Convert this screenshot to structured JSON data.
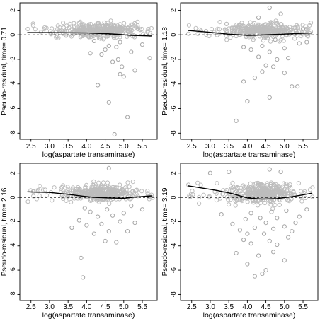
{
  "chart_data": [
    {
      "type": "scatter",
      "xlabel": "log(aspartate transaminase)",
      "ylabel": "Pseudo-residual, time= 0.71",
      "xlim": [
        2.2,
        5.9
      ],
      "ylim": [
        -8.5,
        2.6
      ],
      "xticks": [
        "2.5",
        "3.0",
        "3.5",
        "4.0",
        "4.5",
        "5.0",
        "5.5"
      ],
      "yticks": [
        "2",
        "0",
        "-2",
        "-4",
        "-6",
        "-8"
      ],
      "reference_line": 0,
      "outliers": [
        [
          4.7,
          -2.2
        ],
        [
          4.85,
          -2.0
        ],
        [
          4.95,
          -2.6
        ],
        [
          4.9,
          -3.2
        ],
        [
          4.3,
          -4.1
        ],
        [
          4.6,
          -5.5
        ],
        [
          5.1,
          -6.7
        ],
        [
          4.75,
          -8.1
        ],
        [
          5.0,
          -3.4
        ],
        [
          4.1,
          -1.5
        ],
        [
          5.3,
          -2.9
        ],
        [
          5.7,
          -1.9
        ],
        [
          5.2,
          -1.4
        ],
        [
          4.5,
          -1.2
        ],
        [
          4.4,
          -1.6
        ],
        [
          4.6,
          -0.9
        ],
        [
          4.9,
          -0.6
        ],
        [
          4.2,
          -0.5
        ],
        [
          5.5,
          -0.8
        ],
        [
          4.8,
          -1.0
        ]
      ],
      "trend": [
        [
          2.4,
          0.18
        ],
        [
          3.0,
          0.18
        ],
        [
          3.5,
          0.17
        ],
        [
          4.0,
          0.15
        ],
        [
          4.5,
          0.1
        ],
        [
          4.9,
          0.03
        ],
        [
          5.2,
          -0.05
        ],
        [
          5.75,
          -0.1
        ]
      ]
    },
    {
      "type": "scatter",
      "xlabel": "log(aspartate transaminase)",
      "ylabel": "Pseudo-residual, time= 1.18",
      "xlim": [
        2.2,
        5.9
      ],
      "ylim": [
        -8.5,
        2.6
      ],
      "xticks": [
        "2.5",
        "3.0",
        "3.5",
        "4.0",
        "4.5",
        "5.0",
        "5.5"
      ],
      "yticks": [
        "2",
        "0",
        "-2",
        "-4",
        "-6",
        "-8"
      ],
      "reference_line": 0,
      "outliers": [
        [
          4.6,
          2.2
        ],
        [
          4.3,
          1.4
        ],
        [
          4.9,
          1.7
        ],
        [
          3.7,
          -7.0
        ],
        [
          4.0,
          -5.4
        ],
        [
          4.6,
          -5.1
        ],
        [
          5.2,
          -4.2
        ],
        [
          5.35,
          -4.2
        ],
        [
          4.2,
          -3.5
        ],
        [
          4.4,
          -3.0
        ],
        [
          3.9,
          -3.8
        ],
        [
          4.5,
          -2.5
        ],
        [
          4.7,
          -2.6
        ],
        [
          5.0,
          -3.1
        ],
        [
          4.8,
          -2.0
        ],
        [
          5.1,
          -1.9
        ],
        [
          4.3,
          -1.8
        ],
        [
          4.6,
          -1.4
        ],
        [
          5.0,
          -1.1
        ],
        [
          5.4,
          -0.7
        ],
        [
          4.1,
          -1.2
        ],
        [
          3.9,
          -1.0
        ],
        [
          4.4,
          -0.9
        ],
        [
          5.6,
          -0.6
        ],
        [
          4.75,
          -0.4
        ],
        [
          5.5,
          0.5
        ]
      ],
      "trend": [
        [
          2.4,
          0.35
        ],
        [
          3.0,
          0.2
        ],
        [
          3.5,
          0.05
        ],
        [
          3.8,
          0.0
        ],
        [
          4.0,
          -0.05
        ],
        [
          4.2,
          -0.04
        ],
        [
          4.5,
          0.0
        ],
        [
          5.0,
          0.06
        ],
        [
          5.5,
          0.12
        ],
        [
          5.75,
          0.15
        ]
      ]
    },
    {
      "type": "scatter",
      "xlabel": "log(aspartate transaminase)",
      "ylabel": "Pseudo-residual, time= 2.16",
      "xlim": [
        2.2,
        5.9
      ],
      "ylim": [
        -8.5,
        2.8
      ],
      "xticks": [
        "2.5",
        "3.0",
        "3.5",
        "4.0",
        "4.5",
        "5.0",
        "5.5"
      ],
      "yticks": [
        "2",
        "0",
        "-2",
        "-4",
        "-6",
        "-8"
      ],
      "reference_line": 0,
      "outliers": [
        [
          4.6,
          2.4
        ],
        [
          3.85,
          -5.0
        ],
        [
          3.9,
          -6.6
        ],
        [
          4.8,
          -3.7
        ],
        [
          4.5,
          -3.6
        ],
        [
          4.2,
          -3.0
        ],
        [
          4.6,
          -2.8
        ],
        [
          5.1,
          -2.8
        ],
        [
          3.6,
          -2.5
        ],
        [
          4.0,
          -2.3
        ],
        [
          4.4,
          -2.2
        ],
        [
          4.9,
          -2.0
        ],
        [
          5.3,
          -2.1
        ],
        [
          3.8,
          -1.9
        ],
        [
          4.3,
          -1.6
        ],
        [
          4.7,
          -1.5
        ],
        [
          5.0,
          -1.3
        ],
        [
          5.5,
          -1.0
        ],
        [
          4.1,
          -1.2
        ],
        [
          4.55,
          -1.0
        ],
        [
          3.95,
          -0.9
        ],
        [
          5.2,
          -0.7
        ]
      ],
      "trend": [
        [
          2.4,
          0.45
        ],
        [
          3.0,
          0.4
        ],
        [
          3.5,
          0.25
        ],
        [
          3.9,
          0.1
        ],
        [
          4.2,
          0.0
        ],
        [
          4.6,
          -0.05
        ],
        [
          5.0,
          -0.08
        ],
        [
          5.3,
          0.02
        ],
        [
          5.75,
          0.12
        ]
      ]
    },
    {
      "type": "scatter",
      "xlabel": "log(aspartate transaminase)",
      "ylabel": "Pseudo-residual, time= 3.19",
      "xlim": [
        2.2,
        5.9
      ],
      "ylim": [
        -8.5,
        2.8
      ],
      "xticks": [
        "2.5",
        "3.0",
        "3.5",
        "4.0",
        "4.5",
        "5.0",
        "5.5"
      ],
      "yticks": [
        "2",
        "0",
        "-2",
        "-4",
        "-6",
        "-8"
      ],
      "reference_line": 0,
      "outliers": [
        [
          3.5,
          2.1
        ],
        [
          4.6,
          2.3
        ],
        [
          4.9,
          2.1
        ],
        [
          3.0,
          2.0
        ],
        [
          4.4,
          -6.3
        ],
        [
          4.2,
          -6.5
        ],
        [
          4.5,
          -6.0
        ],
        [
          4.0,
          -5.5
        ],
        [
          3.7,
          -4.6
        ],
        [
          4.7,
          -4.5
        ],
        [
          5.0,
          -5.2
        ],
        [
          4.3,
          -4.8
        ],
        [
          3.9,
          -3.5
        ],
        [
          4.1,
          -3.8
        ],
        [
          4.6,
          -3.6
        ],
        [
          4.8,
          -3.9
        ],
        [
          5.1,
          -3.3
        ],
        [
          5.2,
          -2.8
        ],
        [
          4.0,
          -3.0
        ],
        [
          4.45,
          -3.0
        ],
        [
          3.8,
          -2.7
        ],
        [
          4.2,
          -2.5
        ],
        [
          4.7,
          -2.6
        ],
        [
          5.0,
          -2.4
        ],
        [
          3.6,
          -2.2
        ],
        [
          4.5,
          -2.1
        ],
        [
          5.3,
          -2.1
        ],
        [
          3.95,
          -1.8
        ],
        [
          4.35,
          -1.7
        ],
        [
          4.8,
          -1.7
        ],
        [
          5.4,
          -1.6
        ],
        [
          3.3,
          -1.4
        ],
        [
          4.1,
          -1.3
        ],
        [
          4.65,
          -1.2
        ],
        [
          5.05,
          -1.1
        ],
        [
          5.6,
          -1.0
        ]
      ],
      "trend": [
        [
          2.4,
          0.95
        ],
        [
          2.8,
          0.75
        ],
        [
          3.2,
          0.55
        ],
        [
          3.6,
          0.3
        ],
        [
          4.0,
          -0.05
        ],
        [
          4.4,
          -0.15
        ],
        [
          4.8,
          -0.1
        ],
        [
          5.2,
          0.05
        ],
        [
          5.5,
          0.2
        ],
        [
          5.75,
          0.35
        ]
      ]
    }
  ]
}
